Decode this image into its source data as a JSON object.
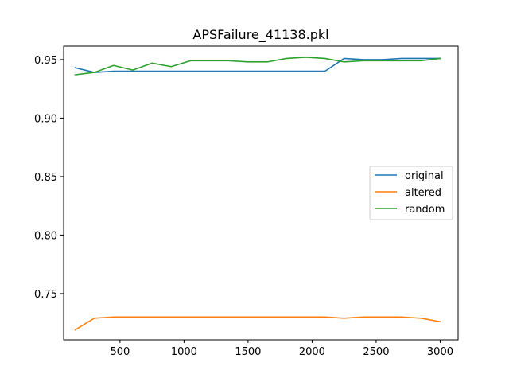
{
  "chart_data": {
    "type": "line",
    "title": "APSFailure_41138.pkl",
    "xlabel": "",
    "ylabel": "",
    "xlim": [
      60,
      3140
    ],
    "ylim": [
      0.7105,
      0.9615
    ],
    "xticks": [
      500,
      1000,
      1500,
      2000,
      2500,
      3000
    ],
    "yticks": [
      0.75,
      0.8,
      0.85,
      0.9,
      0.95
    ],
    "xtick_labels": [
      "500",
      "1000",
      "1500",
      "2000",
      "2500",
      "3000"
    ],
    "ytick_labels": [
      "0.75",
      "0.80",
      "0.85",
      "0.90",
      "0.95"
    ],
    "grid": false,
    "legend_position": "center-right",
    "x": [
      150,
      300,
      450,
      600,
      750,
      900,
      1050,
      1200,
      1350,
      1500,
      1650,
      1800,
      1950,
      2100,
      2250,
      2400,
      2550,
      2700,
      2850,
      3000
    ],
    "series": [
      {
        "name": "original",
        "color": "#1f77b4",
        "values": [
          0.943,
          0.939,
          0.94,
          0.94,
          0.94,
          0.94,
          0.94,
          0.94,
          0.94,
          0.94,
          0.94,
          0.94,
          0.94,
          0.94,
          0.951,
          0.95,
          0.95,
          0.951,
          0.951,
          0.951
        ]
      },
      {
        "name": "altered",
        "color": "#ff7f0e",
        "values": [
          0.719,
          0.729,
          0.73,
          0.73,
          0.73,
          0.73,
          0.73,
          0.73,
          0.73,
          0.73,
          0.73,
          0.73,
          0.73,
          0.73,
          0.729,
          0.73,
          0.73,
          0.73,
          0.729,
          0.726
        ]
      },
      {
        "name": "random",
        "color": "#2ca02c",
        "values": [
          0.937,
          0.939,
          0.945,
          0.941,
          0.947,
          0.944,
          0.949,
          0.949,
          0.949,
          0.948,
          0.948,
          0.951,
          0.952,
          0.951,
          0.948,
          0.949,
          0.949,
          0.949,
          0.949,
          0.951
        ]
      }
    ]
  }
}
